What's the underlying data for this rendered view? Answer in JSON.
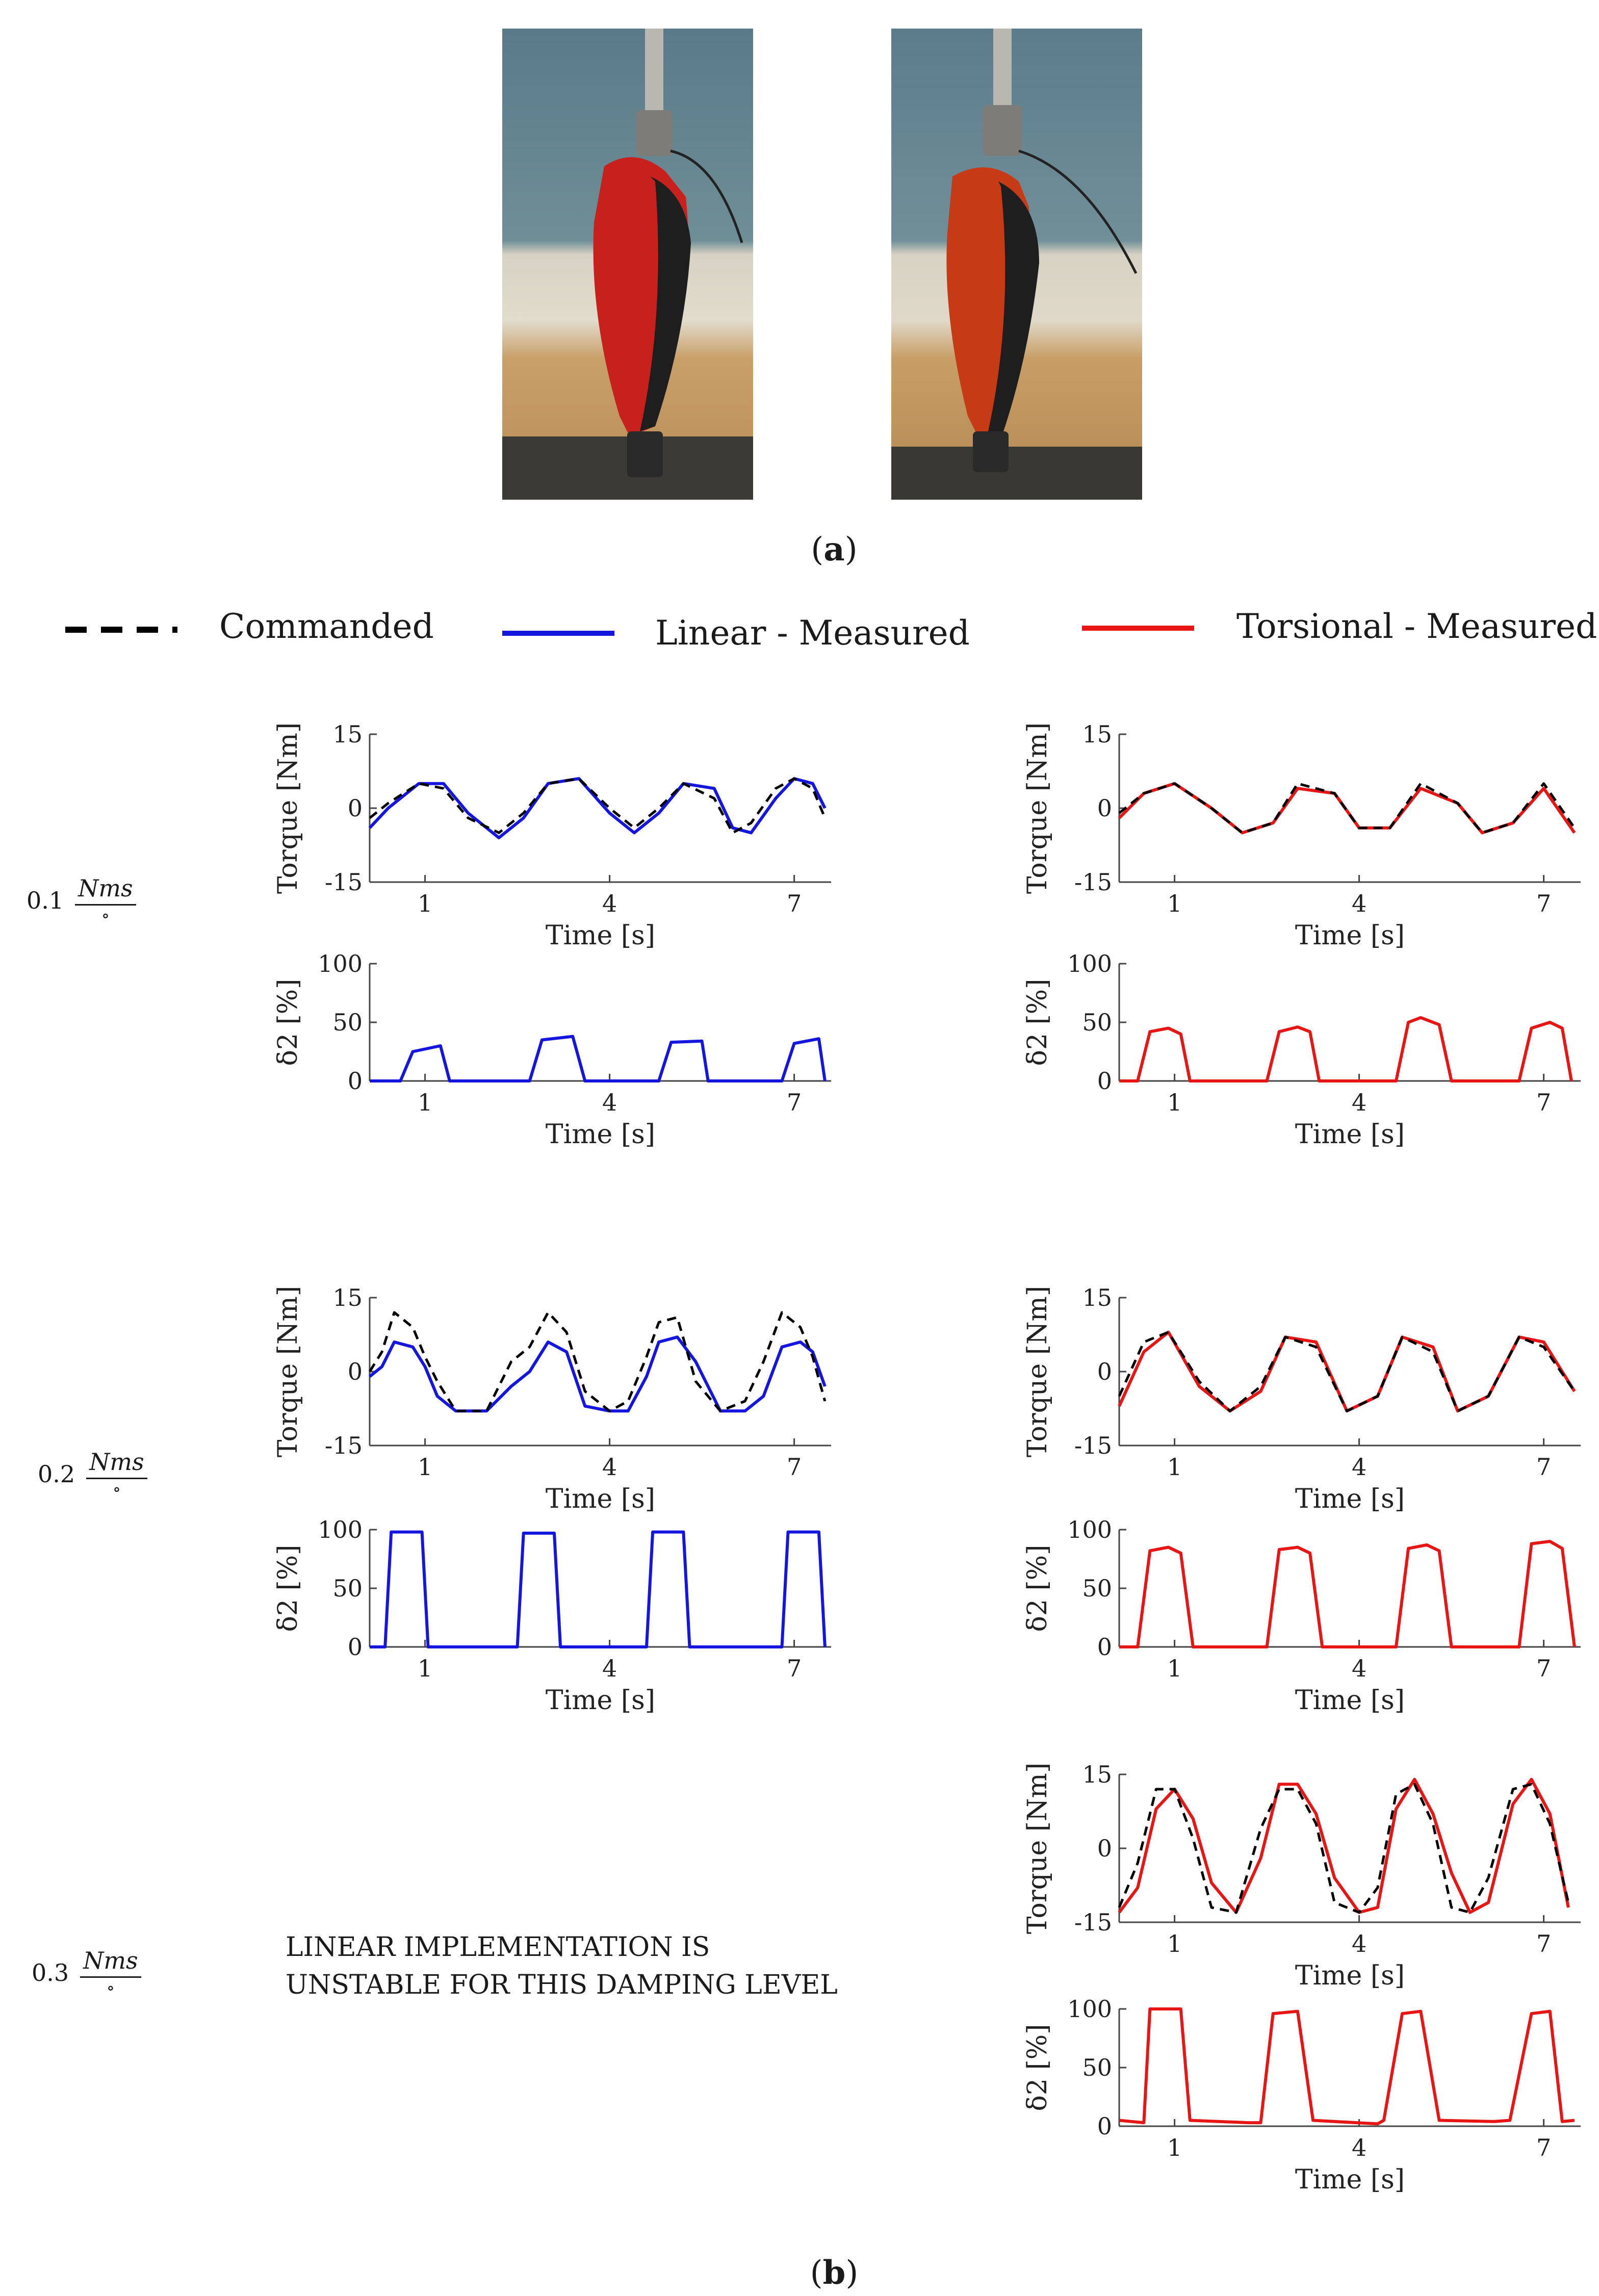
{
  "captions": {
    "a": "a",
    "b": "b"
  },
  "legend": {
    "commanded": "Commanded",
    "linear": "Linear - Measured",
    "torsional": "Torsional - Measured"
  },
  "colors": {
    "commanded": "#000000",
    "linear": "#1515e0",
    "torsional": "#e81515"
  },
  "damping_rows": [
    {
      "value": "0.1",
      "numerator": "Nms",
      "denominator": "∘"
    },
    {
      "value": "0.2",
      "numerator": "Nms",
      "denominator": "∘"
    },
    {
      "value": "0.3",
      "numerator": "Nms",
      "denominator": "∘"
    }
  ],
  "unstable_note": "LINEAR IMPLEMENTATION IS\nUNSTABLE FOR THIS DAMPING LEVEL",
  "chart_data": [
    {
      "id": "lin-torque-01",
      "type": "line",
      "ylabel": "Torque [Nm]",
      "xlabel": "Time [s]",
      "xlim": [
        0.1,
        7.6
      ],
      "ylim": [
        -15,
        15
      ],
      "xticks": [
        1,
        4,
        7
      ],
      "yticks": [
        15,
        0,
        -15
      ],
      "series": [
        {
          "name": "Commanded",
          "style": "dashed",
          "x": [
            0.1,
            0.4,
            0.9,
            1.3,
            1.7,
            2.2,
            2.6,
            3.0,
            3.5,
            4.0,
            4.4,
            4.8,
            5.2,
            5.7,
            6.0,
            6.3,
            6.7,
            7.0,
            7.3,
            7.5
          ],
          "y": [
            -2,
            1,
            5,
            4,
            -2,
            -5,
            -1,
            5,
            6,
            0,
            -4,
            0,
            5,
            2,
            -5,
            -3,
            4,
            6,
            4,
            -2
          ]
        },
        {
          "name": "Linear - Measured",
          "style": "solid",
          "x": [
            0.1,
            0.4,
            0.9,
            1.3,
            1.7,
            2.2,
            2.6,
            3.0,
            3.5,
            4.0,
            4.4,
            4.8,
            5.2,
            5.7,
            6.0,
            6.3,
            6.7,
            7.0,
            7.3,
            7.5
          ],
          "y": [
            -4,
            0,
            5,
            5,
            -1,
            -6,
            -2,
            5,
            6,
            -1,
            -5,
            -1,
            5,
            4,
            -4,
            -5,
            2,
            6,
            5,
            0
          ]
        }
      ]
    },
    {
      "id": "lin-delta-01",
      "type": "line",
      "ylabel": "δ2 [%]",
      "xlabel": "Time [s]",
      "xlim": [
        0.1,
        7.6
      ],
      "ylim": [
        0,
        100
      ],
      "xticks": [
        1,
        4,
        7
      ],
      "yticks": [
        100,
        50,
        0
      ],
      "series": [
        {
          "name": "Linear - Measured",
          "style": "solid",
          "x": [
            0.1,
            0.6,
            0.8,
            1.25,
            1.4,
            2.7,
            2.9,
            3.4,
            3.6,
            4.8,
            5.0,
            5.5,
            5.6,
            6.8,
            7.0,
            7.4,
            7.5
          ],
          "y": [
            0,
            0,
            25,
            30,
            0,
            0,
            35,
            38,
            0,
            0,
            33,
            34,
            0,
            0,
            32,
            36,
            0
          ]
        }
      ]
    },
    {
      "id": "tor-torque-01",
      "type": "line",
      "ylabel": "Torque [Nm]",
      "xlabel": "Time [s]",
      "xlim": [
        0.1,
        7.6
      ],
      "ylim": [
        -15,
        15
      ],
      "xticks": [
        1,
        4,
        7
      ],
      "yticks": [
        15,
        0,
        -15
      ],
      "series": [
        {
          "name": "Commanded",
          "style": "dashed",
          "x": [
            0.1,
            0.5,
            1.0,
            1.6,
            2.1,
            2.6,
            3.0,
            3.6,
            4.0,
            4.5,
            5.0,
            5.6,
            6.0,
            6.5,
            7.0,
            7.5
          ],
          "y": [
            -1,
            3,
            5,
            0,
            -5,
            -3,
            5,
            3,
            -4,
            -4,
            5,
            1,
            -5,
            -3,
            5,
            -4
          ]
        },
        {
          "name": "Torsional - Measured",
          "style": "solid",
          "x": [
            0.1,
            0.5,
            1.0,
            1.6,
            2.1,
            2.6,
            3.0,
            3.6,
            4.0,
            4.5,
            5.0,
            5.6,
            6.0,
            6.5,
            7.0,
            7.5
          ],
          "y": [
            -2,
            3,
            5,
            0,
            -5,
            -3,
            4,
            3,
            -4,
            -4,
            4,
            1,
            -5,
            -3,
            4,
            -5
          ]
        }
      ]
    },
    {
      "id": "tor-delta-01",
      "type": "line",
      "ylabel": "δ2 [%]",
      "xlabel": "Time [s]",
      "xlim": [
        0.1,
        7.6
      ],
      "ylim": [
        0,
        100
      ],
      "xticks": [
        1,
        4,
        7
      ],
      "yticks": [
        100,
        50,
        0
      ],
      "series": [
        {
          "name": "Torsional - Measured",
          "style": "solid",
          "x": [
            0.1,
            0.4,
            0.6,
            0.9,
            1.1,
            1.25,
            2.5,
            2.7,
            3.0,
            3.2,
            3.35,
            4.6,
            4.8,
            5.0,
            5.3,
            5.5,
            6.6,
            6.8,
            7.1,
            7.3,
            7.45
          ],
          "y": [
            0,
            0,
            42,
            45,
            40,
            0,
            0,
            42,
            46,
            42,
            0,
            0,
            50,
            54,
            48,
            0,
            0,
            45,
            50,
            45,
            0
          ]
        }
      ]
    },
    {
      "id": "lin-torque-02",
      "type": "line",
      "ylabel": "Torque [Nm]",
      "xlabel": "Time [s]",
      "xlim": [
        0.1,
        7.6
      ],
      "ylim": [
        -15,
        15
      ],
      "xticks": [
        1,
        4,
        7
      ],
      "yticks": [
        15,
        0,
        -15
      ],
      "series": [
        {
          "name": "Commanded",
          "style": "dashed",
          "x": [
            0.1,
            0.3,
            0.5,
            0.8,
            1.0,
            1.2,
            1.5,
            2.0,
            2.4,
            2.7,
            3.0,
            3.3,
            3.6,
            4.0,
            4.3,
            4.6,
            4.8,
            5.1,
            5.4,
            5.8,
            6.2,
            6.5,
            6.8,
            7.1,
            7.3,
            7.5
          ],
          "y": [
            0,
            4,
            12,
            9,
            3,
            -2,
            -8,
            -8,
            2,
            5,
            12,
            8,
            -4,
            -8,
            -6,
            3,
            10,
            11,
            -2,
            -8,
            -6,
            2,
            12,
            9,
            3,
            -6
          ]
        },
        {
          "name": "Linear - Measured",
          "style": "solid",
          "x": [
            0.1,
            0.3,
            0.5,
            0.8,
            1.0,
            1.2,
            1.5,
            2.0,
            2.4,
            2.7,
            3.0,
            3.3,
            3.6,
            4.0,
            4.3,
            4.6,
            4.8,
            5.1,
            5.4,
            5.8,
            6.2,
            6.5,
            6.8,
            7.1,
            7.3,
            7.5
          ],
          "y": [
            -1,
            1,
            6,
            5,
            1,
            -5,
            -8,
            -8,
            -3,
            0,
            6,
            4,
            -7,
            -8,
            -8,
            -1,
            6,
            7,
            2,
            -8,
            -8,
            -5,
            5,
            6,
            4,
            -3
          ]
        }
      ]
    },
    {
      "id": "lin-delta-02",
      "type": "line",
      "ylabel": "δ2 [%]",
      "xlabel": "Time [s]",
      "xlim": [
        0.1,
        7.6
      ],
      "ylim": [
        0,
        100
      ],
      "xticks": [
        1,
        4,
        7
      ],
      "yticks": [
        100,
        50,
        0
      ],
      "series": [
        {
          "name": "Linear - Measured",
          "style": "solid",
          "x": [
            0.1,
            0.35,
            0.45,
            0.95,
            1.05,
            2.5,
            2.6,
            3.1,
            3.2,
            4.6,
            4.7,
            5.2,
            5.3,
            6.8,
            6.9,
            7.4,
            7.5
          ],
          "y": [
            0,
            0,
            98,
            98,
            0,
            0,
            97,
            97,
            0,
            0,
            98,
            98,
            0,
            0,
            98,
            98,
            0
          ]
        }
      ]
    },
    {
      "id": "tor-torque-02",
      "type": "line",
      "ylabel": "Torque [Nm]",
      "xlabel": "Time [s]",
      "xlim": [
        0.1,
        7.6
      ],
      "ylim": [
        -15,
        15
      ],
      "xticks": [
        1,
        4,
        7
      ],
      "yticks": [
        15,
        0,
        -15
      ],
      "series": [
        {
          "name": "Commanded",
          "style": "dashed",
          "x": [
            0.1,
            0.5,
            0.9,
            1.4,
            1.9,
            2.4,
            2.8,
            3.3,
            3.8,
            4.3,
            4.7,
            5.2,
            5.6,
            6.1,
            6.6,
            7.0,
            7.5
          ],
          "y": [
            -5,
            6,
            8,
            -2,
            -8,
            -3,
            7,
            5,
            -8,
            -5,
            7,
            4,
            -8,
            -5,
            7,
            5,
            -4
          ]
        },
        {
          "name": "Torsional - Measured",
          "style": "solid",
          "x": [
            0.1,
            0.5,
            0.9,
            1.4,
            1.9,
            2.4,
            2.8,
            3.3,
            3.8,
            4.3,
            4.7,
            5.2,
            5.6,
            6.1,
            6.6,
            7.0,
            7.5
          ],
          "y": [
            -7,
            4,
            8,
            -3,
            -8,
            -4,
            7,
            6,
            -8,
            -5,
            7,
            5,
            -8,
            -5,
            7,
            6,
            -4
          ]
        }
      ]
    },
    {
      "id": "tor-delta-02",
      "type": "line",
      "ylabel": "δ2 [%]",
      "xlabel": "Time [s]",
      "xlim": [
        0.1,
        7.6
      ],
      "ylim": [
        0,
        100
      ],
      "xticks": [
        1,
        4,
        7
      ],
      "yticks": [
        100,
        50,
        0
      ],
      "series": [
        {
          "name": "Torsional - Measured",
          "style": "solid",
          "x": [
            0.1,
            0.4,
            0.6,
            0.9,
            1.1,
            1.3,
            2.5,
            2.7,
            3.0,
            3.2,
            3.4,
            4.6,
            4.8,
            5.1,
            5.3,
            5.5,
            6.6,
            6.8,
            7.1,
            7.3,
            7.5
          ],
          "y": [
            0,
            0,
            82,
            85,
            80,
            0,
            0,
            83,
            85,
            80,
            0,
            0,
            84,
            87,
            82,
            0,
            0,
            88,
            90,
            84,
            0
          ]
        }
      ]
    },
    {
      "id": "tor-torque-03",
      "type": "line",
      "ylabel": "Torque [Nm]",
      "xlabel": "Time [s]",
      "xlim": [
        0.1,
        7.6
      ],
      "ylim": [
        -15,
        15
      ],
      "xticks": [
        1,
        4,
        7
      ],
      "yticks": [
        15,
        0,
        -15
      ],
      "series": [
        {
          "name": "Commanded",
          "style": "dashed",
          "x": [
            0.1,
            0.4,
            0.7,
            1.0,
            1.3,
            1.6,
            2.0,
            2.4,
            2.7,
            3.0,
            3.3,
            3.6,
            4.0,
            4.3,
            4.6,
            4.9,
            5.2,
            5.5,
            5.8,
            6.1,
            6.5,
            6.8,
            7.1,
            7.4
          ],
          "y": [
            -12,
            -3,
            12,
            12,
            2,
            -12,
            -13,
            4,
            12,
            12,
            5,
            -11,
            -13,
            -8,
            11,
            13,
            5,
            -12,
            -13,
            -6,
            12,
            13,
            5,
            -11
          ]
        },
        {
          "name": "Torsional - Measured",
          "style": "solid",
          "x": [
            0.1,
            0.4,
            0.7,
            1.0,
            1.3,
            1.6,
            2.0,
            2.4,
            2.7,
            3.0,
            3.3,
            3.6,
            4.0,
            4.3,
            4.6,
            4.9,
            5.2,
            5.5,
            5.8,
            6.1,
            6.5,
            6.8,
            7.1,
            7.4
          ],
          "y": [
            -13,
            -8,
            8,
            12,
            6,
            -7,
            -13,
            -2,
            13,
            13,
            7,
            -6,
            -13,
            -12,
            8,
            14,
            7,
            -5,
            -13,
            -11,
            9,
            14,
            7,
            -12
          ]
        }
      ]
    },
    {
      "id": "tor-delta-03",
      "type": "line",
      "ylabel": "δ2 [%]",
      "xlabel": "Time [s]",
      "xlim": [
        0.1,
        7.6
      ],
      "ylim": [
        0,
        100
      ],
      "xticks": [
        1,
        4,
        7
      ],
      "yticks": [
        100,
        50,
        0
      ],
      "series": [
        {
          "name": "Torsional - Measured",
          "style": "solid",
          "x": [
            0.1,
            0.3,
            0.5,
            0.6,
            1.1,
            1.25,
            2.2,
            2.4,
            2.6,
            3.0,
            3.25,
            4.3,
            4.4,
            4.7,
            5.0,
            5.3,
            6.2,
            6.45,
            6.8,
            7.1,
            7.3,
            7.5
          ],
          "y": [
            5,
            4,
            3,
            100,
            100,
            5,
            3,
            3,
            96,
            98,
            5,
            2,
            5,
            96,
            98,
            5,
            4,
            5,
            96,
            98,
            4,
            5
          ]
        }
      ]
    }
  ]
}
